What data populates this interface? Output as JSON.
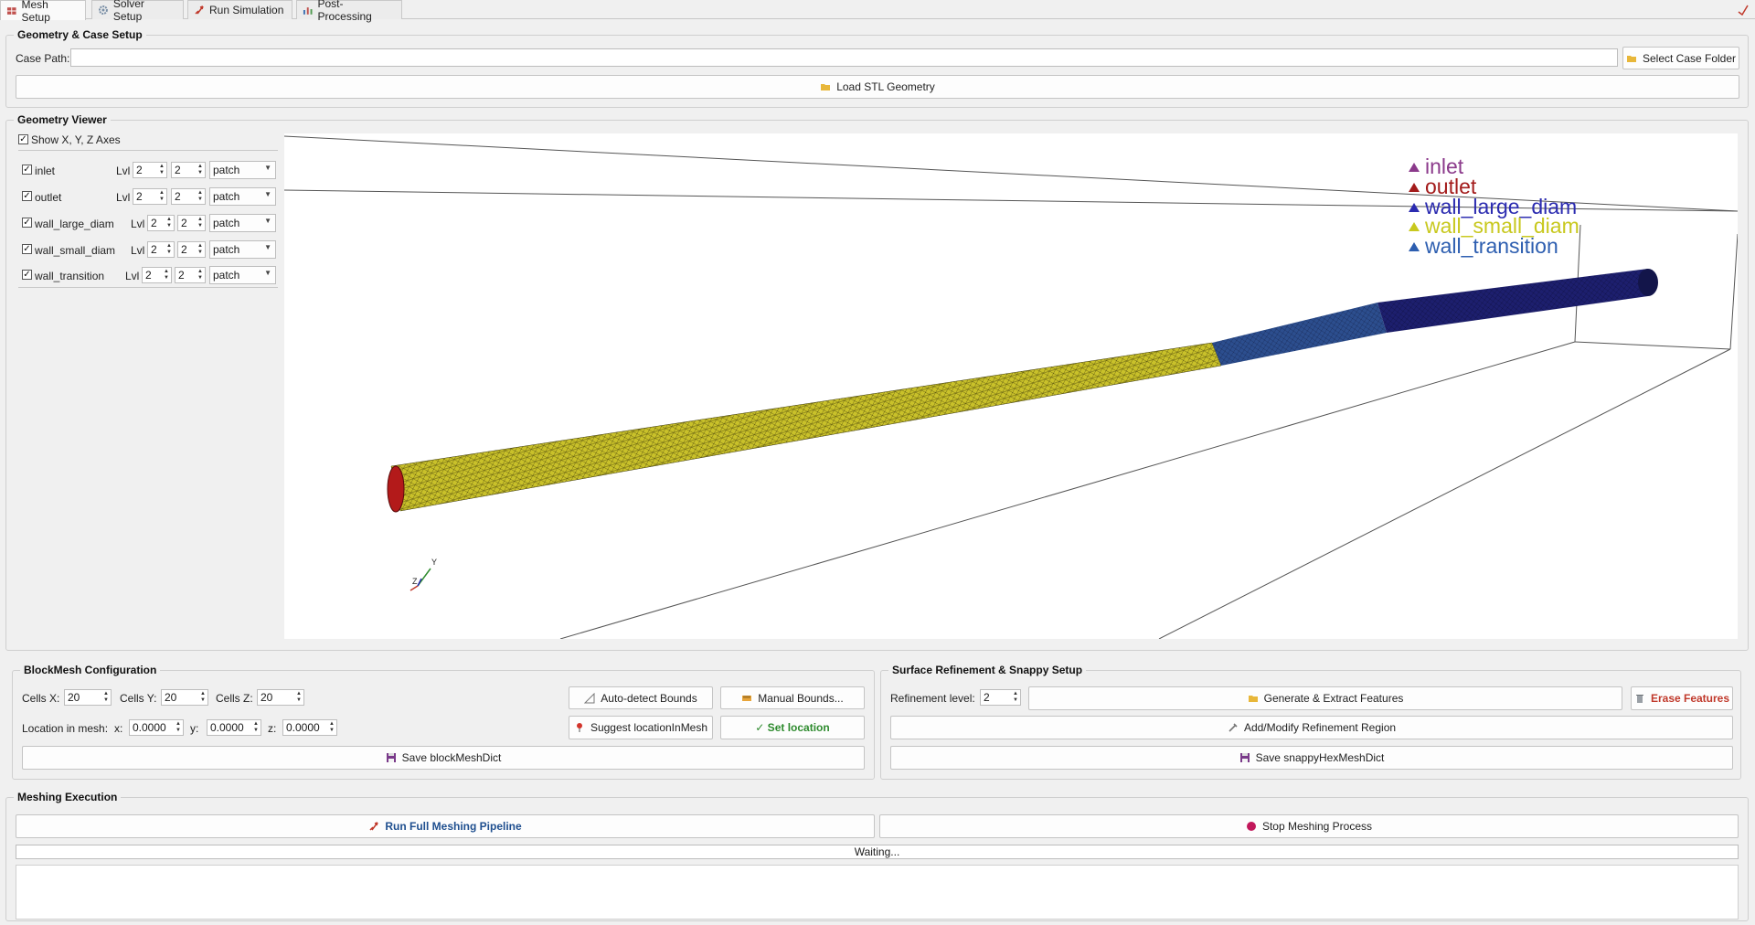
{
  "tabs": [
    {
      "label": "Mesh Setup",
      "icon": "mesh-icon",
      "active": true
    },
    {
      "label": "Solver Setup",
      "icon": "gear-icon",
      "active": false
    },
    {
      "label": "Run Simulation",
      "icon": "rocket-icon",
      "active": false
    },
    {
      "label": "Post-Processing",
      "icon": "bar-chart-icon",
      "active": false
    }
  ],
  "geometry_case": {
    "title": "Geometry & Case Setup",
    "case_path_label": "Case Path:",
    "case_path_value": "",
    "select_folder_label": "Select Case Folder",
    "load_stl_label": "Load STL Geometry"
  },
  "viewer": {
    "title": "Geometry Viewer",
    "show_axes_label": "Show X, Y, Z Axes",
    "show_axes_checked": true,
    "patches": [
      {
        "name": "inlet",
        "lvl_label": "Lvl",
        "min": "2",
        "max": "2",
        "type": "patch",
        "checked": true
      },
      {
        "name": "outlet",
        "lvl_label": "Lvl",
        "min": "2",
        "max": "2",
        "type": "patch",
        "checked": true
      },
      {
        "name": "wall_large_diam",
        "lvl_label": "Lvl",
        "min": "2",
        "max": "2",
        "type": "patch",
        "checked": true
      },
      {
        "name": "wall_small_diam",
        "lvl_label": "Lvl",
        "min": "2",
        "max": "2",
        "type": "patch",
        "checked": true
      },
      {
        "name": "wall_transition",
        "lvl_label": "Lvl",
        "min": "2",
        "max": "2",
        "type": "patch",
        "checked": true
      }
    ],
    "legend": [
      {
        "name": "inlet",
        "color": "#8b3a8b"
      },
      {
        "name": "outlet",
        "color": "#a31b1b"
      },
      {
        "name": "wall_large_diam",
        "color": "#2b2bb0"
      },
      {
        "name": "wall_small_diam",
        "color": "#c8c81e"
      },
      {
        "name": "wall_transition",
        "color": "#2d5eb0"
      }
    ],
    "axes": {
      "y": "Y",
      "z": "Z"
    }
  },
  "blockmesh": {
    "title": "BlockMesh Configuration",
    "cells_x_label": "Cells X:",
    "cells_x": "20",
    "cells_y_label": "Cells Y:",
    "cells_y": "20",
    "cells_z_label": "Cells Z:",
    "cells_z": "20",
    "auto_detect_label": "Auto-detect Bounds",
    "manual_bounds_label": "Manual Bounds...",
    "location_label": "Location in mesh:",
    "x_label": "x:",
    "x": "0.0000",
    "y_label": "y:",
    "y": "0.0000",
    "z_label": "z:",
    "z": "0.0000",
    "suggest_label": "Suggest locationInMesh",
    "set_location_label": "✓ Set location",
    "save_label": "Save blockMeshDict"
  },
  "snappy": {
    "title": "Surface Refinement & Snappy Setup",
    "refinement_label": "Refinement level:",
    "refinement_value": "2",
    "generate_label": "Generate & Extract Features",
    "erase_label": "Erase Features",
    "region_label": "Add/Modify Refinement Region",
    "save_label": "Save snappyHexMeshDict"
  },
  "execution": {
    "title": "Meshing Execution",
    "run_label": "Run Full Meshing Pipeline",
    "stop_label": "Stop Meshing Process",
    "status": "Waiting...",
    "colors": {
      "run": "#1f4f8f",
      "stop": "#c2185b",
      "erase": "#c0392b",
      "set_location": "#2e8b2e"
    }
  }
}
